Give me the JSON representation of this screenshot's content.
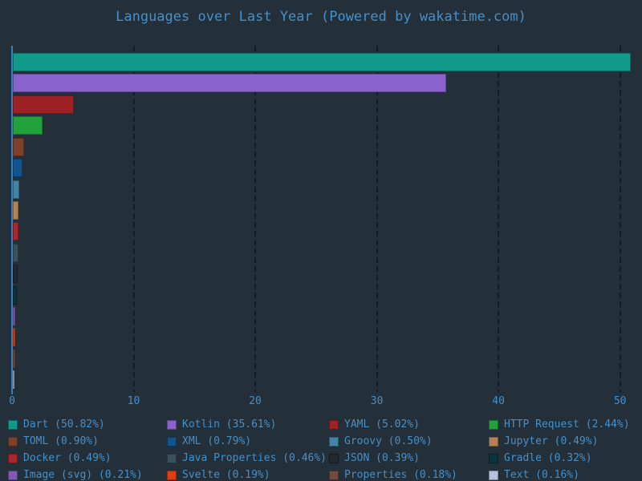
{
  "theme": {
    "background": "#232f39",
    "text_color": "#4690c9",
    "grid_color": "#141c25",
    "axis_color": "#3a7db8"
  },
  "chart_data": {
    "type": "bar",
    "orientation": "horizontal",
    "title": "Languages over Last Year (Powered by wakatime.com)",
    "xlabel": "",
    "ylabel": "",
    "unit": "percent",
    "xlim": [
      0,
      51.8
    ],
    "x_ticks": [
      "0",
      "10",
      "20",
      "30",
      "40",
      "50"
    ],
    "x_tick_values": [
      0,
      10,
      20,
      30,
      40,
      50
    ],
    "grid": "vertical-dashed",
    "legend_position": "bottom",
    "categories": [
      "Dart",
      "Kotlin",
      "YAML",
      "HTTP Request",
      "TOML",
      "XML",
      "Groovy",
      "Jupyter",
      "Docker",
      "Java Properties",
      "JSON",
      "Gradle",
      "Image (svg)",
      "Svelte",
      "Properties",
      "Text"
    ],
    "values": [
      50.82,
      35.61,
      5.02,
      2.44,
      0.9,
      0.79,
      0.5,
      0.49,
      0.49,
      0.46,
      0.39,
      0.32,
      0.21,
      0.19,
      0.18,
      0.16
    ],
    "colors": [
      "#0f9a8c",
      "#8a63ce",
      "#9e2126",
      "#21a23c",
      "#7e4029",
      "#11548f",
      "#4384a6",
      "#b38356",
      "#aa262d",
      "#39525e",
      "#23282e",
      "#0b333c",
      "#8059b3",
      "#e23d11",
      "#6f4b41",
      "#b7c3da"
    ]
  },
  "legend": {
    "items": [
      {
        "label": "Dart (50.82%)",
        "color": "#0f9a8c"
      },
      {
        "label": "Kotlin (35.61%)",
        "color": "#8a63ce"
      },
      {
        "label": "YAML (5.02%)",
        "color": "#9e2126"
      },
      {
        "label": "HTTP Request (2.44%)",
        "color": "#21a23c"
      },
      {
        "label": "TOML (0.90%)",
        "color": "#7e4029"
      },
      {
        "label": "XML (0.79%)",
        "color": "#11548f"
      },
      {
        "label": "Groovy (0.50%)",
        "color": "#4384a6"
      },
      {
        "label": "Jupyter (0.49%)",
        "color": "#b38356"
      },
      {
        "label": "Docker (0.49%)",
        "color": "#aa262d"
      },
      {
        "label": "Java Properties (0.46%)",
        "color": "#39525e"
      },
      {
        "label": "JSON (0.39%)",
        "color": "#23282e"
      },
      {
        "label": "Gradle (0.32%)",
        "color": "#0b333c"
      },
      {
        "label": "Image (svg) (0.21%)",
        "color": "#8059b3"
      },
      {
        "label": "Svelte (0.19%)",
        "color": "#e23d11"
      },
      {
        "label": "Properties (0.18%)",
        "color": "#6f4b41"
      },
      {
        "label": "Text (0.16%)",
        "color": "#b7c3da"
      }
    ]
  }
}
